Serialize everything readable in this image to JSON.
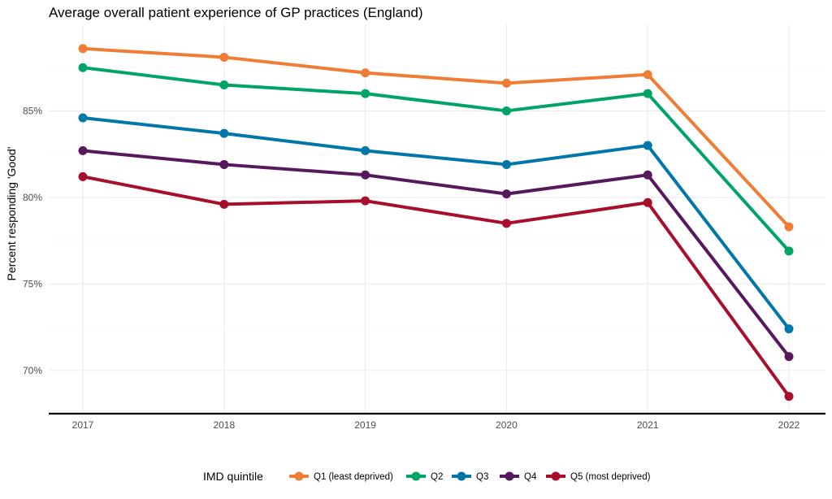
{
  "chart_data": {
    "type": "line",
    "title": "Average overall patient experience of GP practices (England)",
    "xlabel": "",
    "ylabel": "Percent responding 'Good'",
    "x": [
      "2017",
      "2018",
      "2019",
      "2020",
      "2021",
      "2022"
    ],
    "ylim": [
      67.5,
      90
    ],
    "yticks": [
      70,
      75,
      80,
      85
    ],
    "ytick_labels": [
      "70%",
      "75%",
      "80%",
      "85%"
    ],
    "grid": true,
    "legend": {
      "title": "IMD quintile",
      "position": "bottom"
    },
    "series": [
      {
        "name": "Q1 (least deprived)",
        "color": "#EF7D35",
        "values": [
          88.6,
          88.1,
          87.2,
          86.6,
          87.1,
          78.3
        ]
      },
      {
        "name": "Q2",
        "color": "#00A466",
        "values": [
          87.5,
          86.5,
          86.0,
          85.0,
          86.0,
          76.9
        ]
      },
      {
        "name": "Q3",
        "color": "#0077A8",
        "values": [
          84.6,
          83.7,
          82.7,
          81.9,
          83.0,
          72.4
        ]
      },
      {
        "name": "Q4",
        "color": "#57195E",
        "values": [
          82.7,
          81.9,
          81.3,
          80.2,
          81.3,
          70.8
        ]
      },
      {
        "name": "Q5 (most deprived)",
        "color": "#A80F2D",
        "values": [
          81.2,
          79.6,
          79.8,
          78.5,
          79.7,
          68.5
        ]
      }
    ]
  }
}
